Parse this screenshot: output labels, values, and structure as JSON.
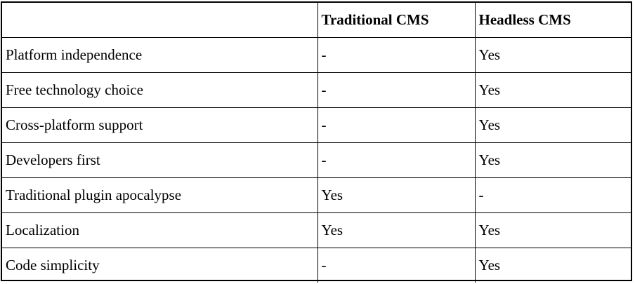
{
  "table": {
    "headers": [
      "",
      "Traditional CMS",
      "Headless CMS"
    ],
    "rows": [
      [
        "Platform independence",
        "-",
        "Yes"
      ],
      [
        "Free technology choice",
        "-",
        "Yes"
      ],
      [
        "Cross-platform support",
        "-",
        "Yes"
      ],
      [
        "Developers first",
        "-",
        "Yes"
      ],
      [
        "Traditional plugin apocalypse",
        "Yes",
        "-"
      ],
      [
        "Localization",
        "Yes",
        "Yes"
      ],
      [
        "Code simplicity",
        "-",
        "Yes"
      ]
    ]
  }
}
